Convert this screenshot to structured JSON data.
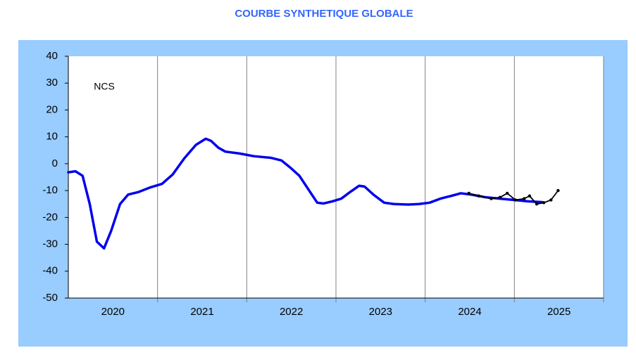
{
  "chart_data": {
    "type": "line",
    "title": "COURBE SYNTHETIQUE GLOBALE",
    "annotation": "NCS",
    "series": [
      {
        "color": "#0000ee",
        "width": 3.5,
        "x": [
          2020.0,
          2020.08,
          2020.16,
          2020.24,
          2020.32,
          2020.4,
          2020.48,
          2020.58,
          2020.67,
          2020.79,
          2020.92,
          2021.05,
          2021.17,
          2021.3,
          2021.43,
          2021.54,
          2021.6,
          2021.68,
          2021.76,
          2021.92,
          2022.08,
          2022.27,
          2022.39,
          2022.49,
          2022.59,
          2022.68,
          2022.79,
          2022.86,
          2022.96,
          2023.06,
          2023.16,
          2023.26,
          2023.32,
          2023.42,
          2023.54,
          2023.65,
          2023.81,
          2023.93,
          2024.05,
          2024.17,
          2024.29,
          2024.4,
          2024.52,
          2024.68,
          2024.84,
          2025.0,
          2025.15,
          2025.31
        ],
        "values": [
          -3.2,
          -2.8,
          -4.5,
          -15,
          -29,
          -31.5,
          -25,
          -15,
          -11.5,
          -10.5,
          -8.8,
          -7.5,
          -4,
          2,
          7,
          9.3,
          8.5,
          6,
          4.5,
          3.8,
          2.8,
          2.2,
          1.2,
          -1.5,
          -4.5,
          -9,
          -14.5,
          -14.8,
          -14,
          -13,
          -10.5,
          -8.2,
          -8.5,
          -11.5,
          -14.5,
          -15,
          -15.2,
          -15,
          -14.5,
          -13,
          -12,
          -11,
          -11.5,
          -12.5,
          -13,
          -13.5,
          -14,
          -14.3
        ]
      },
      {
        "color": "#000000",
        "width": 1.8,
        "markers": true,
        "x": [
          2024.49,
          2024.6,
          2024.74,
          2024.84,
          2024.92,
          2025.01,
          2025.11,
          2025.17,
          2025.25,
          2025.33,
          2025.41,
          2025.49
        ],
        "values": [
          -11,
          -12,
          -13,
          -12.5,
          -11,
          -13.5,
          -13,
          -12,
          -15,
          -14.5,
          -13.5,
          -10
        ]
      }
    ],
    "xlim": [
      2020,
      2026
    ],
    "xgrid": [
      2021,
      2022,
      2023,
      2024,
      2025,
      2026
    ],
    "xticks": [
      {
        "value": 2020.5,
        "label": "2020"
      },
      {
        "value": 2021.5,
        "label": "2021"
      },
      {
        "value": 2022.5,
        "label": "2022"
      },
      {
        "value": 2023.5,
        "label": "2023"
      },
      {
        "value": 2024.5,
        "label": "2024"
      },
      {
        "value": 2025.5,
        "label": "2025"
      }
    ],
    "ylim": [
      -50,
      40
    ],
    "yticks": [
      -50,
      -40,
      -30,
      -20,
      -10,
      0,
      10,
      20,
      30,
      40
    ],
    "panel_color": "#99ccff",
    "title_color": "#3366ff"
  }
}
